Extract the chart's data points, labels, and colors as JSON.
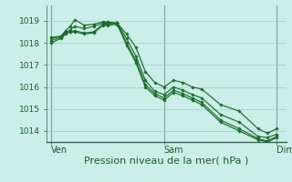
{
  "bg_color": "#cceee8",
  "grid_color": "#99cccc",
  "line_color": "#1a6b2a",
  "marker_color": "#1a6b2a",
  "xlabel": "Pression niveau de la mer( hPa )",
  "xlabel_fontsize": 8,
  "yticks": [
    1014,
    1015,
    1016,
    1017,
    1018,
    1019
  ],
  "xtick_labels": [
    "Ven",
    "Sam",
    "Dim"
  ],
  "xtick_positions": [
    0,
    24,
    48
  ],
  "ylim": [
    1013.5,
    1019.7
  ],
  "xlim": [
    -1,
    50
  ],
  "series": [
    {
      "x": [
        0,
        2,
        3,
        4,
        5,
        7,
        9,
        11,
        12,
        14,
        16,
        18,
        20,
        22,
        24,
        26,
        28,
        30,
        32,
        36,
        40,
        44,
        46,
        48
      ],
      "y": [
        1018.25,
        1018.3,
        1018.55,
        1018.75,
        1019.05,
        1018.8,
        1018.85,
        1018.95,
        1018.95,
        1018.9,
        1018.4,
        1017.8,
        1016.7,
        1016.2,
        1016.0,
        1016.3,
        1016.2,
        1016.0,
        1015.9,
        1015.2,
        1014.9,
        1014.1,
        1013.9,
        1014.1
      ]
    },
    {
      "x": [
        0,
        2,
        3,
        4,
        5,
        7,
        9,
        11,
        12,
        14,
        16,
        18,
        20,
        22,
        24,
        26,
        28,
        30,
        32,
        36,
        40,
        44,
        46,
        48
      ],
      "y": [
        1018.0,
        1018.2,
        1018.4,
        1018.6,
        1018.75,
        1018.65,
        1018.75,
        1018.9,
        1018.9,
        1018.9,
        1018.2,
        1017.4,
        1016.3,
        1015.8,
        1015.65,
        1016.0,
        1015.85,
        1015.65,
        1015.5,
        1014.75,
        1014.4,
        1013.75,
        1013.7,
        1013.85
      ]
    },
    {
      "x": [
        0,
        2,
        3,
        4,
        5,
        7,
        9,
        11,
        12,
        14,
        16,
        18,
        20,
        22,
        24,
        26,
        28,
        30,
        32,
        36,
        40,
        44,
        46,
        48
      ],
      "y": [
        1018.1,
        1018.25,
        1018.45,
        1018.5,
        1018.55,
        1018.45,
        1018.5,
        1018.85,
        1018.85,
        1018.9,
        1018.0,
        1017.2,
        1016.1,
        1015.7,
        1015.5,
        1015.85,
        1015.7,
        1015.5,
        1015.3,
        1014.5,
        1014.1,
        1013.65,
        1013.55,
        1013.75
      ]
    },
    {
      "x": [
        0,
        2,
        3,
        4,
        5,
        7,
        9,
        11,
        12,
        14,
        16,
        18,
        20,
        22,
        24,
        26,
        28,
        30,
        32,
        36,
        40,
        44,
        46,
        48
      ],
      "y": [
        1018.2,
        1018.3,
        1018.45,
        1018.5,
        1018.5,
        1018.4,
        1018.45,
        1018.8,
        1018.8,
        1018.85,
        1017.9,
        1017.1,
        1016.0,
        1015.6,
        1015.4,
        1015.75,
        1015.6,
        1015.4,
        1015.2,
        1014.4,
        1014.0,
        1013.6,
        1013.5,
        1013.7
      ]
    }
  ]
}
